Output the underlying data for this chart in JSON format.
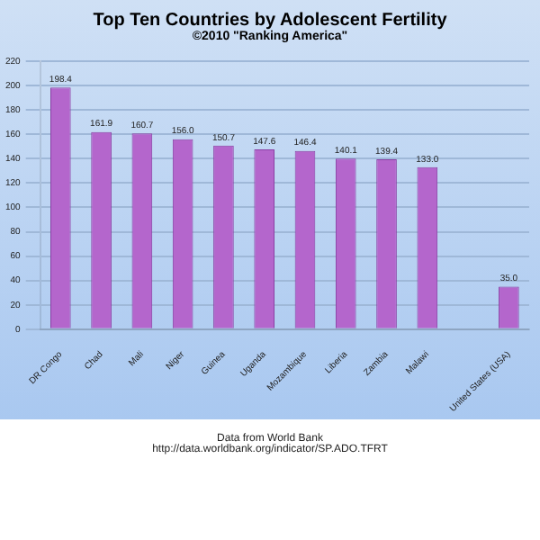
{
  "chart_data": {
    "type": "bar",
    "title": "Top Ten Countries by Adolescent Fertility",
    "subtitle": "©2010 \"Ranking America\"",
    "categories": [
      "DR Congo",
      "Chad",
      "Mali",
      "Niger",
      "Guinea",
      "Uganda",
      "Mozambique",
      "Liberia",
      "Zambia",
      "Malawi",
      null,
      "United States (USA)"
    ],
    "values": [
      198.4,
      161.9,
      160.7,
      156.0,
      150.7,
      147.6,
      146.4,
      140.1,
      139.4,
      133.0,
      null,
      35.0
    ],
    "value_labels": [
      "198.4",
      "161.9",
      "160.7",
      "156.0",
      "150.7",
      "147.6",
      "146.4",
      "140.1",
      "139.4",
      "133.0",
      null,
      "35.0"
    ],
    "color": "#b466cc",
    "ylim": [
      0,
      220
    ],
    "yticks": [
      0,
      20,
      40,
      60,
      80,
      100,
      120,
      140,
      160,
      180,
      200,
      220
    ],
    "grid": "y",
    "annotations": [
      "Data from World Bank",
      "http://data.worldbank.org/indicator/SP.ADO.TFRT"
    ]
  }
}
